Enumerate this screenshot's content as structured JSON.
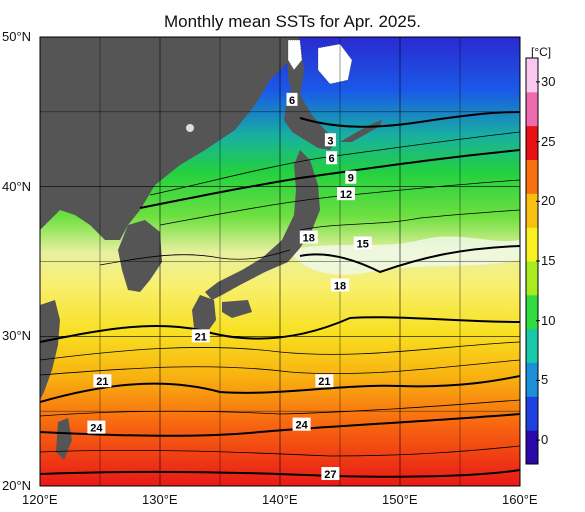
{
  "title": "Monthly mean SSTs for Apr. 2025.",
  "axes": {
    "lat_labels": [
      {
        "lat": 50,
        "label": "50°N"
      },
      {
        "lat": 40,
        "label": "40°N"
      },
      {
        "lat": 30,
        "label": "30°N"
      },
      {
        "lat": 20,
        "label": "20°N"
      }
    ],
    "lon_labels": [
      {
        "lon": 120,
        "label": "120°E"
      },
      {
        "lon": 130,
        "label": "130°E"
      },
      {
        "lon": 140,
        "label": "140°E"
      },
      {
        "lon": 150,
        "label": "150°E"
      },
      {
        "lon": 160,
        "label": "160°E"
      }
    ],
    "lat_range": [
      20,
      50
    ],
    "lon_range": [
      120,
      160
    ]
  },
  "colorbar": {
    "unit": "[°C]",
    "range": [
      -2,
      32
    ],
    "ticks": [
      "0",
      "5",
      "10",
      "15",
      "20",
      "25",
      "30"
    ],
    "colors": [
      "#2a0aa8",
      "#1f3fe0",
      "#1d8fd8",
      "#18c8a8",
      "#30dc40",
      "#a8ec20",
      "#f8f020",
      "#f8c010",
      "#f87010",
      "#e81010",
      "#f06ab0",
      "#f8c8f0"
    ]
  },
  "contour_labels": [
    {
      "text": "6",
      "lon": 141.0,
      "lat": 45.8
    },
    {
      "text": "3",
      "lon": 144.2,
      "lat": 43.1
    },
    {
      "text": "6",
      "lon": 144.3,
      "lat": 41.9
    },
    {
      "text": "9",
      "lon": 145.9,
      "lat": 40.6
    },
    {
      "text": "12",
      "lon": 145.5,
      "lat": 39.5
    },
    {
      "text": "18",
      "lon": 142.4,
      "lat": 36.6
    },
    {
      "text": "15",
      "lon": 146.9,
      "lat": 36.2
    },
    {
      "text": "18",
      "lon": 145.0,
      "lat": 33.4
    },
    {
      "text": "21",
      "lon": 133.4,
      "lat": 30.0
    },
    {
      "text": "21",
      "lon": 143.7,
      "lat": 27.0
    },
    {
      "text": "21",
      "lon": 125.2,
      "lat": 27.0
    },
    {
      "text": "24",
      "lon": 141.8,
      "lat": 24.1
    },
    {
      "text": "24",
      "lon": 124.7,
      "lat": 23.9
    },
    {
      "text": "27",
      "lon": 144.2,
      "lat": 20.8
    }
  ]
}
